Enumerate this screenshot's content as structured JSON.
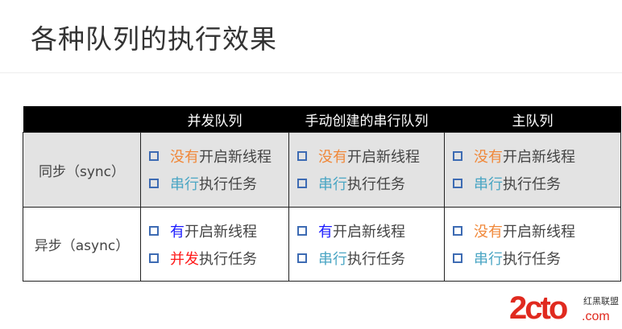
{
  "title": "各种队列的执行效果",
  "table": {
    "headers": [
      "",
      "并发队列",
      "手动创建的串行队列",
      "主队列"
    ],
    "rows": [
      {
        "label": "同步（sync）",
        "cells": [
          [
            {
              "hl": "没有",
              "color": "#f0883a",
              "rest": "开启新线程"
            },
            {
              "hl": "串行",
              "color": "#4ba6c4",
              "rest": "执行任务"
            }
          ],
          [
            {
              "hl": "没有",
              "color": "#f0883a",
              "rest": "开启新线程"
            },
            {
              "hl": "串行",
              "color": "#4ba6c4",
              "rest": "执行任务"
            }
          ],
          [
            {
              "hl": "没有",
              "color": "#f0883a",
              "rest": "开启新线程"
            },
            {
              "hl": "串行",
              "color": "#4ba6c4",
              "rest": "执行任务"
            }
          ]
        ]
      },
      {
        "label": "异步（async）",
        "cells": [
          [
            {
              "hl": "有",
              "color": "#1a1aff",
              "rest": "开启新线程"
            },
            {
              "hl": "并发",
              "color": "#ff1a1a",
              "rest": "执行任务"
            }
          ],
          [
            {
              "hl": "有",
              "color": "#1a1aff",
              "rest": "开启新线程"
            },
            {
              "hl": "串行",
              "color": "#4ba6c4",
              "rest": "执行任务"
            }
          ],
          [
            {
              "hl": "没有",
              "color": "#f0883a",
              "rest": "开启新线程"
            },
            {
              "hl": "串行",
              "color": "#4ba6c4",
              "rest": "执行任务"
            }
          ]
        ]
      }
    ]
  },
  "watermark": {
    "logo": "2cto",
    "sub": "红黑联盟",
    ".com": ".com",
    "color": "#e02a1f"
  }
}
